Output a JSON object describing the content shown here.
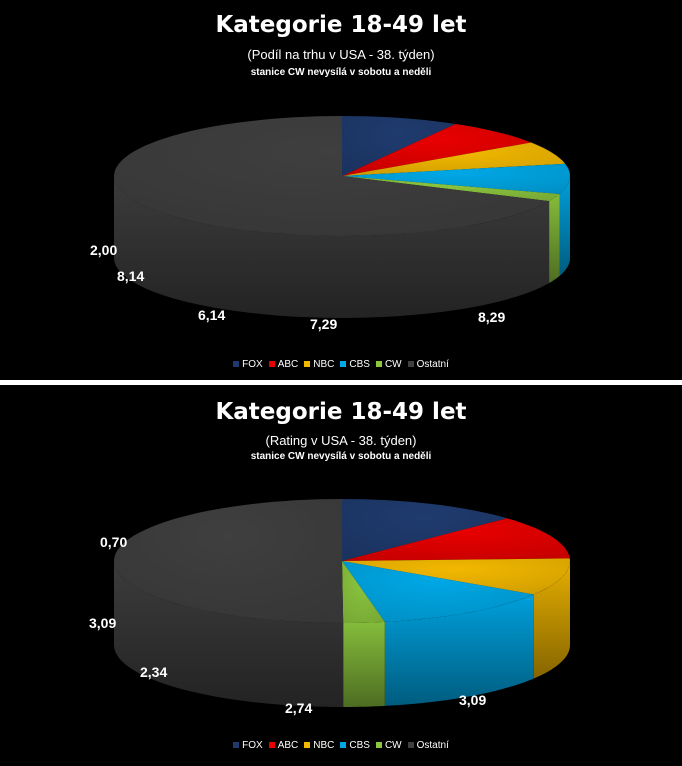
{
  "chart_data": [
    {
      "type": "pie",
      "title": "Kategorie 18-49 let",
      "subtitle": "(Podíl na trhu v USA - 38. týden)",
      "note": "stanice CW nevysílá  v sobotu a neděli",
      "categories": [
        "FOX",
        "ABC",
        "NBC",
        "CBS",
        "CW",
        "Ostatní"
      ],
      "values": [
        8.29,
        7.29,
        6.14,
        8.14,
        2.0,
        68.14
      ],
      "data_labels": [
        "8,29",
        "7,29",
        "6,14",
        "8,14",
        "2,00",
        ""
      ],
      "colors": [
        "#1F3B6E",
        "#E80000",
        "#F2B800",
        "#00A8E6",
        "#8CC63E",
        "#3F3F3F"
      ],
      "legend_position": "bottom",
      "style": "3d"
    },
    {
      "type": "pie",
      "title": "Kategorie 18-49 let",
      "subtitle": "(Rating v USA - 38. týden)",
      "note": "stanice CW nevysílá  v sobotu a neděli",
      "categories": [
        "FOX",
        "ABC",
        "NBC",
        "CBS",
        "CW",
        "Ostatní"
      ],
      "values": [
        3.09,
        2.74,
        2.34,
        3.09,
        0.7,
        12.0
      ],
      "data_labels": [
        "3,09",
        "2,74",
        "2,34",
        "3,09",
        "0,70",
        ""
      ],
      "colors": [
        "#1F3B6E",
        "#E80000",
        "#F2B800",
        "#00A8E6",
        "#8CC63E",
        "#3F3F3F"
      ],
      "legend_position": "bottom",
      "style": "3d"
    }
  ]
}
